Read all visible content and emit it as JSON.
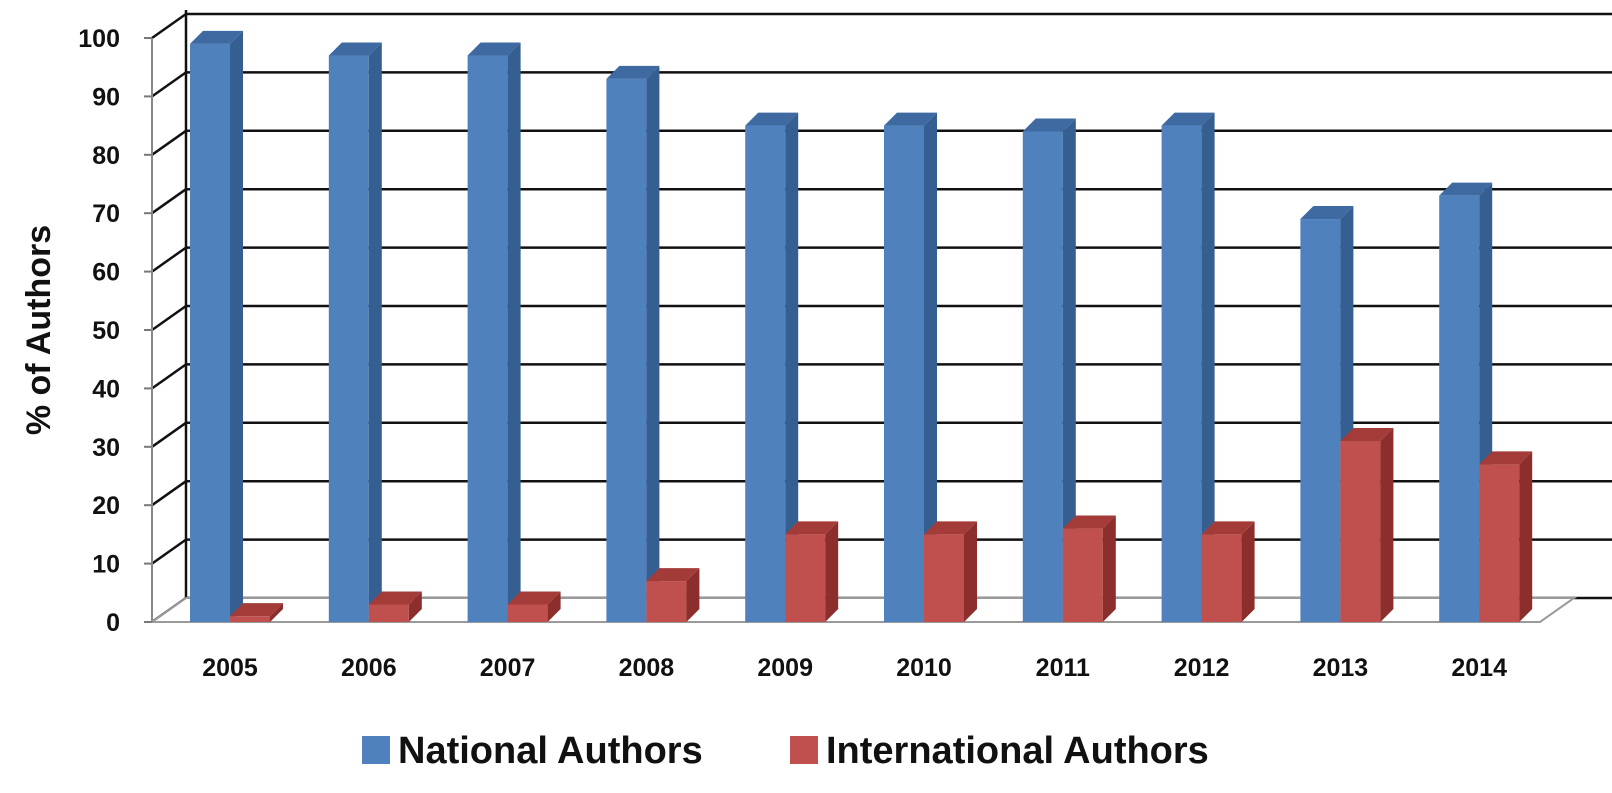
{
  "chart_data": {
    "type": "bar",
    "style": "3d-clustered-column",
    "title": "",
    "xlabel": "",
    "ylabel": "% of Authors",
    "ylim": [
      0,
      100
    ],
    "yticks": [
      "0",
      "10",
      "20",
      "30",
      "40",
      "50",
      "60",
      "70",
      "80",
      "90",
      "100"
    ],
    "ytick_values": [
      0,
      10,
      20,
      30,
      40,
      50,
      60,
      70,
      80,
      90,
      100
    ],
    "grid": true,
    "legend_position": "bottom",
    "categories": [
      "2005",
      "2006",
      "2007",
      "2008",
      "2009",
      "2010",
      "2011",
      "2012",
      "2013",
      "2014"
    ],
    "series": [
      {
        "name": "National Authors",
        "color": "#4f81bd",
        "side_color": "#365f91",
        "top_color": "#3e6aa1",
        "values": [
          99,
          97,
          97,
          93,
          85,
          85,
          84,
          85,
          69,
          73
        ]
      },
      {
        "name": "International Authors",
        "color": "#c0504d",
        "side_color": "#8b2e2c",
        "top_color": "#a33b39",
        "values": [
          1,
          3,
          3,
          7,
          15,
          15,
          16,
          15,
          31,
          27
        ]
      }
    ]
  }
}
